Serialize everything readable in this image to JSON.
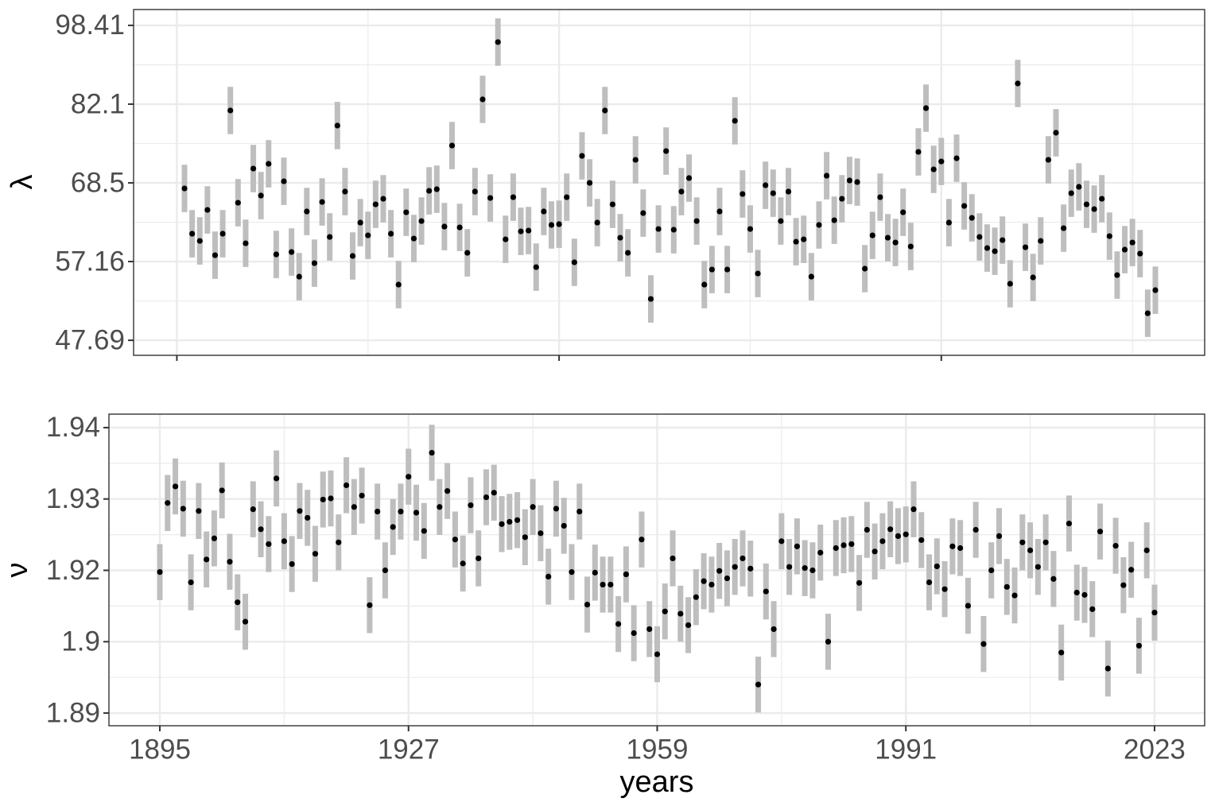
{
  "chart_data": [
    {
      "type": "pointrange",
      "ylabel": "λ",
      "x": [
        1896,
        1897,
        1898,
        1899,
        1900,
        1901,
        1902,
        1903,
        1904,
        1905,
        1906,
        1907,
        1908,
        1909,
        1910,
        1911,
        1912,
        1913,
        1914,
        1915,
        1916,
        1917,
        1918,
        1919,
        1920,
        1921,
        1922,
        1923,
        1924,
        1925,
        1926,
        1927,
        1928,
        1929,
        1930,
        1931,
        1932,
        1933,
        1934,
        1935,
        1936,
        1937,
        1938,
        1939,
        1940,
        1941,
        1942,
        1943,
        1944,
        1945,
        1946,
        1947,
        1948,
        1949,
        1950,
        1951,
        1952,
        1953,
        1954,
        1955,
        1956,
        1957,
        1958,
        1959,
        1960,
        1961,
        1962,
        1963,
        1964,
        1965,
        1966,
        1967,
        1968,
        1969,
        1970,
        1971,
        1972,
        1973,
        1974,
        1975,
        1976,
        1977,
        1978,
        1979,
        1980,
        1981,
        1982,
        1983,
        1984,
        1985,
        1986,
        1987,
        1988,
        1989,
        1990,
        1991,
        1992,
        1993,
        1994,
        1995,
        1996,
        1997,
        1998,
        1999,
        2000,
        2001,
        2002,
        2003,
        2004,
        2005,
        2006,
        2007,
        2008,
        2009,
        2010,
        2011,
        2012,
        2013,
        2014,
        2015,
        2016,
        2017,
        2018,
        2019,
        2020,
        2021,
        2022,
        2023
      ],
      "values": [
        67.63,
        60.94,
        59.94,
        64.37,
        58.0,
        60.94,
        80.91,
        65.44,
        59.61,
        70.79,
        66.53,
        71.57,
        58.11,
        68.75,
        58.43,
        55.21,
        64.14,
        56.95,
        65.56,
        60.49,
        78.15,
        67.14,
        57.9,
        62.52,
        60.71,
        65.2,
        66.04,
        60.94,
        54.21,
        64.02,
        60.27,
        62.74,
        67.26,
        67.51,
        61.95,
        74.64,
        61.83,
        58.32,
        67.14,
        83.01,
        66.16,
        94.7,
        60.16,
        66.28,
        61.27,
        61.38,
        56.43,
        64.14,
        62.18,
        62.29,
        66.28,
        57.06,
        72.89,
        68.5,
        62.52,
        80.91,
        65.2,
        60.38,
        58.32,
        72.23,
        63.9,
        52.45,
        61.61,
        73.7,
        61.5,
        67.14,
        69.26,
        62.74,
        54.21,
        56.12,
        64.14,
        56.12,
        79.01,
        66.77,
        61.61,
        55.61,
        68.13,
        66.89,
        62.74,
        67.14,
        59.83,
        60.16,
        55.21,
        62.18,
        69.64,
        62.86,
        66.04,
        68.88,
        68.63,
        56.23,
        60.71,
        66.28,
        60.38,
        59.72,
        64.02,
        59.18,
        73.56,
        81.35,
        70.66,
        71.96,
        62.52,
        72.49,
        64.96,
        63.2,
        60.49,
        58.96,
        58.53,
        60.05,
        54.31,
        86.1,
        59.07,
        55.11,
        59.94,
        72.23,
        76.87,
        61.72,
        66.89,
        67.88,
        65.2,
        64.49,
        66.04,
        60.6,
        55.41,
        58.75,
        59.72,
        58.21,
        50.75,
        53.52
      ],
      "error_factor": 1.056,
      "xlim": [
        1889.34,
        2029.45
      ],
      "xticks": [
        1895,
        1945,
        1995
      ],
      "show_xtick_labels": false,
      "ylim": [
        46.07,
        102.06
      ],
      "yticks": [
        98.41,
        82.1,
        68.5,
        57.16,
        47.69
      ],
      "log_y": true,
      "grid": true,
      "color": "#bebebe",
      "point_color": "#000000"
    },
    {
      "type": "pointrange",
      "ylabel": "ν",
      "xlabel": "years",
      "x": [
        1895,
        1896,
        1897,
        1898,
        1899,
        1900,
        1901,
        1902,
        1903,
        1904,
        1905,
        1906,
        1907,
        1908,
        1909,
        1910,
        1911,
        1912,
        1913,
        1914,
        1915,
        1916,
        1917,
        1918,
        1919,
        1920,
        1921,
        1922,
        1923,
        1924,
        1925,
        1926,
        1927,
        1928,
        1929,
        1930,
        1931,
        1932,
        1933,
        1934,
        1935,
        1936,
        1937,
        1938,
        1939,
        1940,
        1941,
        1942,
        1943,
        1944,
        1945,
        1946,
        1947,
        1948,
        1949,
        1950,
        1951,
        1952,
        1953,
        1954,
        1955,
        1956,
        1957,
        1958,
        1959,
        1960,
        1961,
        1962,
        1963,
        1964,
        1965,
        1966,
        1967,
        1968,
        1969,
        1970,
        1971,
        1972,
        1973,
        1974,
        1975,
        1976,
        1977,
        1978,
        1979,
        1980,
        1981,
        1982,
        1983,
        1984,
        1985,
        1986,
        1987,
        1988,
        1989,
        1990,
        1991,
        1992,
        1993,
        1994,
        1995,
        1996,
        1997,
        1998,
        1999,
        2000,
        2001,
        2002,
        2003,
        2004,
        2005,
        2006,
        2007,
        2008,
        2009,
        2010,
        2011,
        2012,
        2013,
        2014,
        2015,
        2016,
        2017,
        2018,
        2019,
        2020,
        2021,
        2022,
        2023
      ],
      "values": [
        1.9147,
        1.9268,
        1.9297,
        1.9258,
        1.9129,
        1.9254,
        1.9169,
        1.9206,
        1.929,
        1.9165,
        1.9094,
        1.906,
        1.9257,
        1.9222,
        1.9196,
        1.9311,
        1.9201,
        1.9161,
        1.9254,
        1.9242,
        1.9179,
        1.9274,
        1.9276,
        1.9199,
        1.9299,
        1.9261,
        1.9281,
        1.9089,
        1.9253,
        1.915,
        1.9226,
        1.9253,
        1.9314,
        1.9251,
        1.9219,
        1.9356,
        1.9261,
        1.9289,
        1.9204,
        1.9162,
        1.9264,
        1.9171,
        1.9278,
        1.9286,
        1.9231,
        1.9235,
        1.9238,
        1.9208,
        1.9261,
        1.9215,
        1.9139,
        1.9258,
        1.9228,
        1.9147,
        1.9253,
        1.909,
        1.9146,
        1.9125,
        1.9125,
        1.9056,
        1.9143,
        1.904,
        1.9204,
        1.9047,
        1.9003,
        1.9078,
        1.9171,
        1.9074,
        1.9054,
        1.9103,
        1.9131,
        1.9125,
        1.9149,
        1.9136,
        1.9156,
        1.9171,
        1.9153,
        1.895,
        1.9113,
        1.9047,
        1.9201,
        1.9156,
        1.9192,
        1.9154,
        1.915,
        1.9181,
        1.9025,
        1.9189,
        1.9194,
        1.9196,
        1.9128,
        1.9221,
        1.9183,
        1.9201,
        1.9222,
        1.921,
        1.9213,
        1.9257,
        1.9203,
        1.9129,
        1.9157,
        1.9117,
        1.9192,
        1.9189,
        1.9088,
        1.9221,
        1.9021,
        1.915,
        1.921,
        1.9121,
        1.9106,
        1.9199,
        1.9185,
        1.9156,
        1.9199,
        1.9135,
        1.9006,
        1.9232,
        1.9111,
        1.9107,
        1.9082,
        1.9218,
        1.8978,
        1.9193,
        1.9124,
        1.9151,
        1.9018,
        1.9185,
        1.9076
      ],
      "error": 0.0049,
      "xlim": [
        1888.45,
        2029.45
      ],
      "xticks": [
        1895,
        1927,
        1959,
        1991,
        2023
      ],
      "show_xtick_labels": true,
      "ylim": [
        1.88778,
        1.94236
      ],
      "yticks": [
        {
          "value": 1.94,
          "label": "1.94"
        },
        {
          "value": 1.9275,
          "label": "1.93"
        },
        {
          "value": 1.915,
          "label": "1.92"
        },
        {
          "value": 1.9025,
          "label": "1.9"
        },
        {
          "value": 1.89,
          "label": "1.89"
        }
      ],
      "log_y": false,
      "grid": true,
      "color": "#bebebe",
      "point_color": "#000000"
    }
  ]
}
